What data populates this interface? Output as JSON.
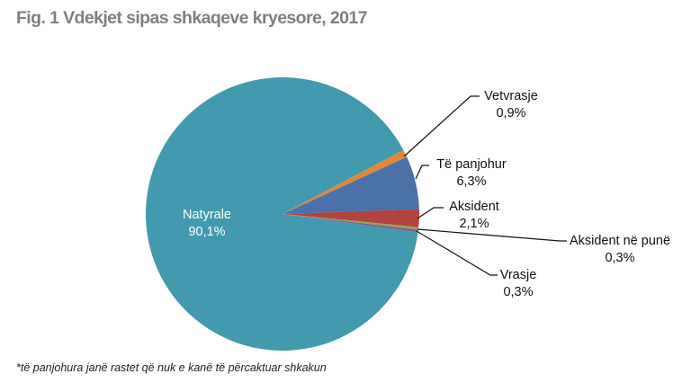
{
  "title": "Fig. 1 Vdekjet sipas shkaqeve kryesore, 2017",
  "footnote": "*të panjohura janë rastet që nuk e kanë të përcaktuar shkakun",
  "chart_data": {
    "type": "pie",
    "title": "Fig. 1 Vdekjet sipas shkaqeve kryesore, 2017",
    "categories": [
      "Natyrale",
      "Vetvrasje",
      "Të panjohur",
      "Aksident",
      "Aksident në punë",
      "Vrasje"
    ],
    "values": [
      90.1,
      0.9,
      6.3,
      2.1,
      0.3,
      0.3
    ],
    "value_labels": [
      "90,1%",
      "0,9%",
      "6,3%",
      "2,1%",
      "0,3%",
      "0,3%"
    ],
    "colors": [
      "#4399ad",
      "#e0873a",
      "#4a72a8",
      "#b2433f",
      "#8faa4e",
      "#7a5a9e"
    ],
    "unit": "%",
    "legend": "none (data labels with leader lines)"
  },
  "labels": {
    "natyrale": {
      "name": "Natyrale",
      "value": "90,1%"
    },
    "vetvrasje": {
      "name": "Vetvrasje",
      "value": "0,9%"
    },
    "panjohur": {
      "name": "Të panjohur",
      "value": "6,3%"
    },
    "aksident": {
      "name": "Aksident",
      "value": "2,1%"
    },
    "aksident_pune": {
      "name": "Aksident në punë",
      "value": "0,3%"
    },
    "vrasje": {
      "name": "Vrasje",
      "value": "0,3%"
    }
  }
}
